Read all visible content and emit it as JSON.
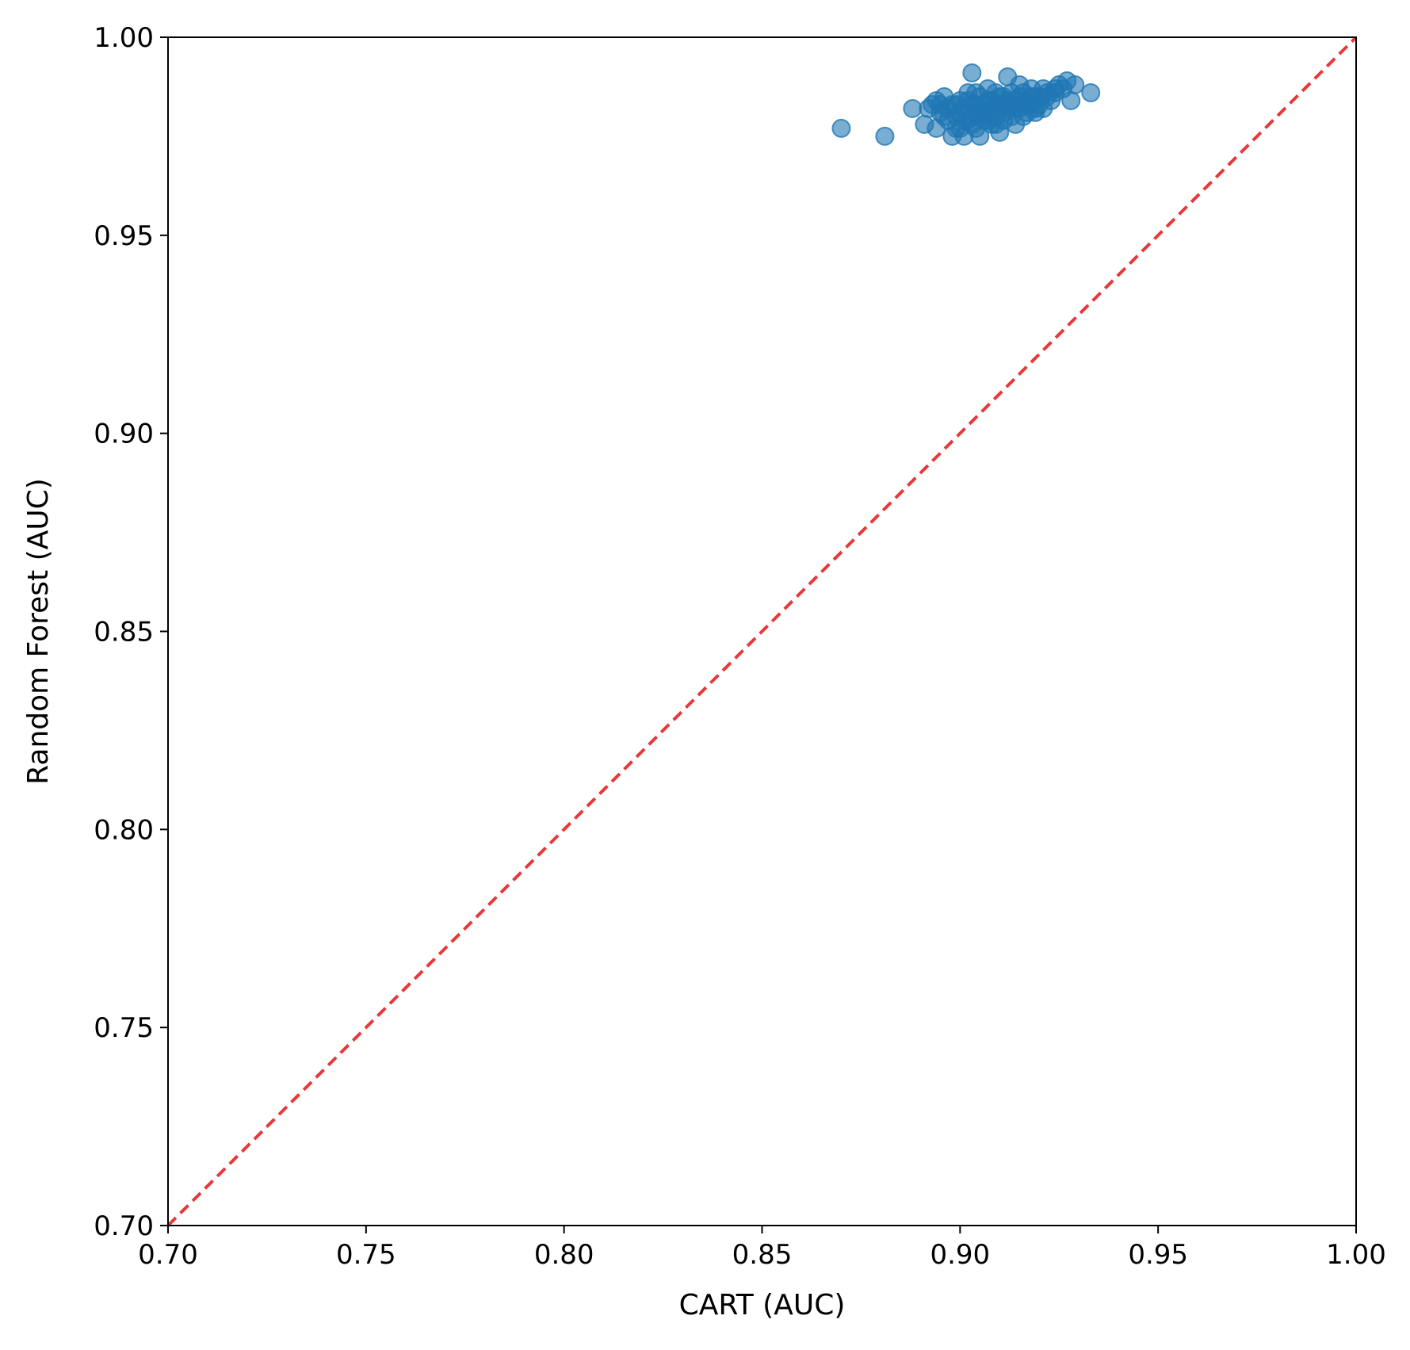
{
  "chart_data": {
    "type": "scatter",
    "xlabel": "CART (AUC)",
    "ylabel": "Random Forest (AUC)",
    "xlim": [
      0.7,
      1.0
    ],
    "ylim": [
      0.7,
      1.0
    ],
    "xticks": [
      "0.70",
      "0.75",
      "0.80",
      "0.85",
      "0.90",
      "0.95",
      "1.00"
    ],
    "yticks": [
      "0.70",
      "0.75",
      "0.80",
      "0.85",
      "0.90",
      "0.95",
      "1.00"
    ],
    "grid": false,
    "reference_line": {
      "from": [
        0.7,
        0.7
      ],
      "to": [
        1.0,
        1.0
      ],
      "style": "dashed",
      "color": "#e8383a"
    },
    "marker_color": "#1f77b4",
    "series": [
      {
        "points": [
          [
            0.87,
            0.977
          ],
          [
            0.881,
            0.975
          ],
          [
            0.888,
            0.982
          ],
          [
            0.891,
            0.978
          ],
          [
            0.893,
            0.983
          ],
          [
            0.894,
            0.977
          ],
          [
            0.895,
            0.981
          ],
          [
            0.896,
            0.985
          ],
          [
            0.897,
            0.979
          ],
          [
            0.898,
            0.975
          ],
          [
            0.898,
            0.983
          ],
          [
            0.899,
            0.98
          ],
          [
            0.9,
            0.977
          ],
          [
            0.9,
            0.984
          ],
          [
            0.901,
            0.975
          ],
          [
            0.901,
            0.982
          ],
          [
            0.902,
            0.979
          ],
          [
            0.902,
            0.986
          ],
          [
            0.903,
            0.991
          ],
          [
            0.903,
            0.983
          ],
          [
            0.904,
            0.977
          ],
          [
            0.904,
            0.981
          ],
          [
            0.905,
            0.975
          ],
          [
            0.905,
            0.985
          ],
          [
            0.906,
            0.979
          ],
          [
            0.906,
            0.983
          ],
          [
            0.907,
            0.981
          ],
          [
            0.907,
            0.987
          ],
          [
            0.908,
            0.978
          ],
          [
            0.908,
            0.984
          ],
          [
            0.909,
            0.982
          ],
          [
            0.909,
            0.98
          ],
          [
            0.91,
            0.976
          ],
          [
            0.91,
            0.985
          ],
          [
            0.911,
            0.983
          ],
          [
            0.911,
            0.979
          ],
          [
            0.912,
            0.99
          ],
          [
            0.912,
            0.982
          ],
          [
            0.913,
            0.986
          ],
          [
            0.913,
            0.98
          ],
          [
            0.914,
            0.978
          ],
          [
            0.914,
            0.984
          ],
          [
            0.915,
            0.988
          ],
          [
            0.915,
            0.982
          ],
          [
            0.916,
            0.98
          ],
          [
            0.916,
            0.986
          ],
          [
            0.917,
            0.984
          ],
          [
            0.917,
            0.981
          ],
          [
            0.918,
            0.983
          ],
          [
            0.918,
            0.987
          ],
          [
            0.919,
            0.981
          ],
          [
            0.919,
            0.985
          ],
          [
            0.92,
            0.983
          ],
          [
            0.921,
            0.982
          ],
          [
            0.921,
            0.987
          ],
          [
            0.922,
            0.985
          ],
          [
            0.923,
            0.984
          ],
          [
            0.924,
            0.986
          ],
          [
            0.925,
            0.988
          ],
          [
            0.926,
            0.987
          ],
          [
            0.927,
            0.989
          ],
          [
            0.928,
            0.984
          ],
          [
            0.929,
            0.988
          ],
          [
            0.933,
            0.986
          ],
          [
            0.892,
            0.982
          ],
          [
            0.894,
            0.984
          ],
          [
            0.896,
            0.98
          ],
          [
            0.899,
            0.977
          ],
          [
            0.903,
            0.978
          ],
          [
            0.905,
            0.982
          ],
          [
            0.907,
            0.984
          ],
          [
            0.909,
            0.986
          ],
          [
            0.911,
            0.981
          ],
          [
            0.913,
            0.983
          ],
          [
            0.915,
            0.985
          ],
          [
            0.917,
            0.983
          ],
          [
            0.919,
            0.982
          ],
          [
            0.9,
            0.981
          ],
          [
            0.902,
            0.984
          ],
          [
            0.904,
            0.986
          ],
          [
            0.906,
            0.981
          ],
          [
            0.908,
            0.982
          ],
          [
            0.91,
            0.983
          ],
          [
            0.912,
            0.984
          ],
          [
            0.914,
            0.982
          ],
          [
            0.897,
            0.982
          ],
          [
            0.901,
            0.979
          ],
          [
            0.903,
            0.98
          ],
          [
            0.905,
            0.98
          ],
          [
            0.907,
            0.979
          ],
          [
            0.909,
            0.978
          ],
          [
            0.911,
            0.985
          ],
          [
            0.916,
            0.983
          ],
          [
            0.918,
            0.985
          ],
          [
            0.92,
            0.985
          ],
          [
            0.922,
            0.986
          ],
          [
            0.924,
            0.987
          ],
          [
            0.895,
            0.983
          ],
          [
            0.899,
            0.983
          ],
          [
            0.904,
            0.983
          ]
        ]
      }
    ]
  }
}
